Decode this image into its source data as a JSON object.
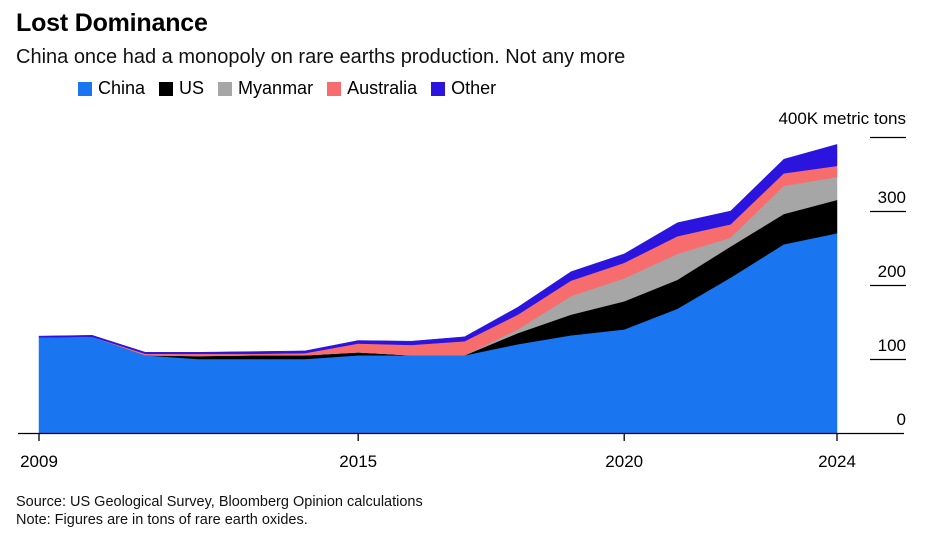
{
  "title": "Lost Dominance",
  "subtitle": "China once had a monopoly on rare earths production. Not any more",
  "source": "Source: US Geological Survey, Bloomberg Opinion calculations",
  "note": "Note: Figures are in tons of rare earth oxides.",
  "chart_data": {
    "type": "area",
    "stacked": true,
    "x": [
      2009,
      2010,
      2011,
      2012,
      2013,
      2014,
      2015,
      2016,
      2017,
      2018,
      2019,
      2020,
      2021,
      2022,
      2023,
      2024
    ],
    "series": [
      {
        "name": "China",
        "color": "#1a75f0",
        "values": [
          129,
          130,
          105,
          100,
          100,
          100,
          105,
          105,
          105,
          120,
          132,
          140,
          168,
          210,
          255,
          270
        ]
      },
      {
        "name": "US",
        "color": "#000000",
        "values": [
          0,
          0,
          0,
          4,
          5,
          5,
          4,
          0,
          0,
          15,
          28,
          38,
          39,
          42,
          41,
          45
        ]
      },
      {
        "name": "Myanmar",
        "color": "#a6a6a6",
        "values": [
          0,
          0,
          0,
          0,
          0,
          0,
          0,
          0,
          0,
          5,
          25,
          31,
          35,
          12,
          38,
          31
        ]
      },
      {
        "name": "Australia",
        "color": "#f76d6d",
        "values": [
          0,
          0,
          2,
          3,
          2,
          3,
          12,
          14,
          19,
          20,
          21,
          21,
          24,
          18,
          17,
          15
        ]
      },
      {
        "name": "Other",
        "color": "#2b14dd",
        "values": [
          2,
          2,
          2,
          2,
          3,
          3,
          4,
          5,
          6,
          10,
          12,
          12,
          18,
          18,
          19,
          29
        ]
      }
    ],
    "y_unit_label": "400K metric tons",
    "y_ticks": [
      0,
      100,
      200,
      300,
      400
    ],
    "y_tick_labels": [
      "0",
      "100",
      "200",
      "300",
      ""
    ],
    "ylim": [
      0,
      400
    ],
    "x_ticks": [
      2009,
      2015,
      2020,
      2024
    ],
    "x_tick_labels": [
      "2009",
      "2015",
      "2020",
      "2024"
    ],
    "xlim": [
      2009,
      2024
    ],
    "legend_position": "top-left",
    "grid": false
  }
}
